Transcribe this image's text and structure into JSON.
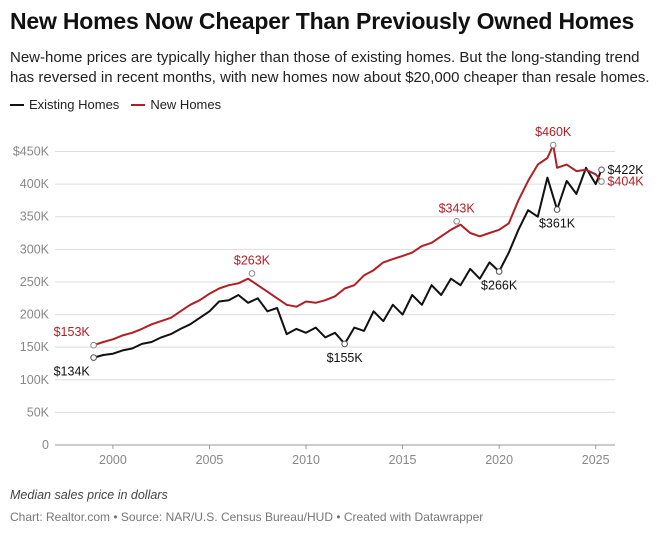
{
  "title": "New Homes Now Cheaper Than Previously Owned Homes",
  "subtitle": "New-home prices are typically higher than those of existing homes. But the long-standing trend has reversed in recent months, with new homes now about $20,000 cheaper than resale homes.",
  "notes": "Median sales price in dollars",
  "source": "Chart: Realtor.com • Source: NAR/U.S. Census Bureau/HUD • Created with Datawrapper",
  "colors": {
    "existing": "#111111",
    "new": "#b01f24",
    "grid": "#dddddd",
    "axis_text": "#888888"
  },
  "chart_data": {
    "type": "line",
    "title": "New Homes Now Cheaper Than Previously Owned Homes",
    "ylabel": "",
    "xlabel": "",
    "ylim": [
      0,
      460000
    ],
    "xlim": [
      1997.0,
      2026.0
    ],
    "x_ticks": [
      2000,
      2005,
      2010,
      2015,
      2020,
      2025
    ],
    "y_ticks": [
      {
        "value": 0,
        "label": "0"
      },
      {
        "value": 50000,
        "label": "50K"
      },
      {
        "value": 100000,
        "label": "100K"
      },
      {
        "value": 150000,
        "label": "150K"
      },
      {
        "value": 200000,
        "label": "200K"
      },
      {
        "value": 250000,
        "label": "250K"
      },
      {
        "value": 300000,
        "label": "300K"
      },
      {
        "value": 350000,
        "label": "350K"
      },
      {
        "value": 400000,
        "label": "400K"
      },
      {
        "value": 450000,
        "label": "$450K"
      }
    ],
    "grid": true,
    "legend": "top-left",
    "series": [
      {
        "name": "Existing Homes",
        "color": "#111111",
        "points": [
          [
            1999.0,
            134000
          ],
          [
            1999.5,
            138000
          ],
          [
            2000.0,
            140000
          ],
          [
            2000.5,
            145000
          ],
          [
            2001.0,
            148000
          ],
          [
            2001.5,
            155000
          ],
          [
            2002.0,
            158000
          ],
          [
            2002.5,
            165000
          ],
          [
            2003.0,
            170000
          ],
          [
            2003.5,
            178000
          ],
          [
            2004.0,
            185000
          ],
          [
            2004.5,
            195000
          ],
          [
            2005.0,
            205000
          ],
          [
            2005.5,
            220000
          ],
          [
            2006.0,
            222000
          ],
          [
            2006.5,
            230000
          ],
          [
            2007.0,
            218000
          ],
          [
            2007.5,
            225000
          ],
          [
            2008.0,
            205000
          ],
          [
            2008.5,
            210000
          ],
          [
            2009.0,
            170000
          ],
          [
            2009.5,
            178000
          ],
          [
            2010.0,
            172000
          ],
          [
            2010.5,
            180000
          ],
          [
            2011.0,
            165000
          ],
          [
            2011.5,
            172000
          ],
          [
            2012.0,
            155000
          ],
          [
            2012.5,
            180000
          ],
          [
            2013.0,
            175000
          ],
          [
            2013.5,
            205000
          ],
          [
            2014.0,
            190000
          ],
          [
            2014.5,
            215000
          ],
          [
            2015.0,
            200000
          ],
          [
            2015.5,
            230000
          ],
          [
            2016.0,
            215000
          ],
          [
            2016.5,
            245000
          ],
          [
            2017.0,
            230000
          ],
          [
            2017.5,
            255000
          ],
          [
            2018.0,
            245000
          ],
          [
            2018.5,
            270000
          ],
          [
            2019.0,
            255000
          ],
          [
            2019.5,
            280000
          ],
          [
            2020.0,
            266000
          ],
          [
            2020.5,
            295000
          ],
          [
            2021.0,
            330000
          ],
          [
            2021.5,
            360000
          ],
          [
            2022.0,
            350000
          ],
          [
            2022.5,
            410000
          ],
          [
            2023.0,
            361000
          ],
          [
            2023.5,
            405000
          ],
          [
            2024.0,
            385000
          ],
          [
            2024.5,
            425000
          ],
          [
            2025.0,
            400000
          ],
          [
            2025.3,
            422000
          ]
        ]
      },
      {
        "name": "New Homes",
        "color": "#b01f24",
        "points": [
          [
            1999.0,
            153000
          ],
          [
            1999.5,
            158000
          ],
          [
            2000.0,
            162000
          ],
          [
            2000.5,
            168000
          ],
          [
            2001.0,
            172000
          ],
          [
            2001.5,
            178000
          ],
          [
            2002.0,
            185000
          ],
          [
            2002.5,
            190000
          ],
          [
            2003.0,
            195000
          ],
          [
            2003.5,
            205000
          ],
          [
            2004.0,
            215000
          ],
          [
            2004.5,
            222000
          ],
          [
            2005.0,
            232000
          ],
          [
            2005.5,
            240000
          ],
          [
            2006.0,
            245000
          ],
          [
            2006.5,
            248000
          ],
          [
            2007.0,
            255000
          ],
          [
            2007.5,
            245000
          ],
          [
            2008.0,
            235000
          ],
          [
            2008.5,
            225000
          ],
          [
            2009.0,
            215000
          ],
          [
            2009.5,
            212000
          ],
          [
            2010.0,
            220000
          ],
          [
            2010.5,
            218000
          ],
          [
            2011.0,
            222000
          ],
          [
            2011.5,
            228000
          ],
          [
            2012.0,
            240000
          ],
          [
            2012.5,
            245000
          ],
          [
            2013.0,
            260000
          ],
          [
            2013.5,
            268000
          ],
          [
            2014.0,
            280000
          ],
          [
            2014.5,
            285000
          ],
          [
            2015.0,
            290000
          ],
          [
            2015.5,
            295000
          ],
          [
            2016.0,
            305000
          ],
          [
            2016.5,
            310000
          ],
          [
            2017.0,
            320000
          ],
          [
            2017.5,
            330000
          ],
          [
            2018.0,
            338000
          ],
          [
            2018.5,
            325000
          ],
          [
            2019.0,
            320000
          ],
          [
            2019.5,
            325000
          ],
          [
            2020.0,
            330000
          ],
          [
            2020.5,
            340000
          ],
          [
            2021.0,
            375000
          ],
          [
            2021.5,
            405000
          ],
          [
            2022.0,
            430000
          ],
          [
            2022.5,
            440000
          ],
          [
            2022.8,
            460000
          ],
          [
            2023.0,
            425000
          ],
          [
            2023.5,
            430000
          ],
          [
            2024.0,
            420000
          ],
          [
            2024.5,
            422000
          ],
          [
            2025.0,
            415000
          ],
          [
            2025.3,
            404000
          ]
        ]
      }
    ],
    "annotations": [
      {
        "series": "New Homes",
        "x": 1999.0,
        "y": 153000,
        "text": "$153K",
        "pos": "above"
      },
      {
        "series": "Existing Homes",
        "x": 1999.0,
        "y": 134000,
        "text": "$134K",
        "pos": "below"
      },
      {
        "series": "New Homes",
        "x": 2007.2,
        "y": 263000,
        "text": "$263K",
        "pos": "above"
      },
      {
        "series": "Existing Homes",
        "x": 2012.0,
        "y": 155000,
        "text": "$155K",
        "pos": "below"
      },
      {
        "series": "New Homes",
        "x": 2017.8,
        "y": 343000,
        "text": "$343K",
        "pos": "above"
      },
      {
        "series": "Existing Homes",
        "x": 2020.0,
        "y": 266000,
        "text": "$266K",
        "pos": "below"
      },
      {
        "series": "New Homes",
        "x": 2022.8,
        "y": 460000,
        "text": "$460K",
        "pos": "above"
      },
      {
        "series": "Existing Homes",
        "x": 2023.0,
        "y": 361000,
        "text": "$361K",
        "pos": "below"
      },
      {
        "series": "Existing Homes",
        "x": 2025.3,
        "y": 422000,
        "text": "$422K",
        "pos": "right"
      },
      {
        "series": "New Homes",
        "x": 2025.3,
        "y": 404000,
        "text": "$404K",
        "pos": "right"
      }
    ]
  }
}
